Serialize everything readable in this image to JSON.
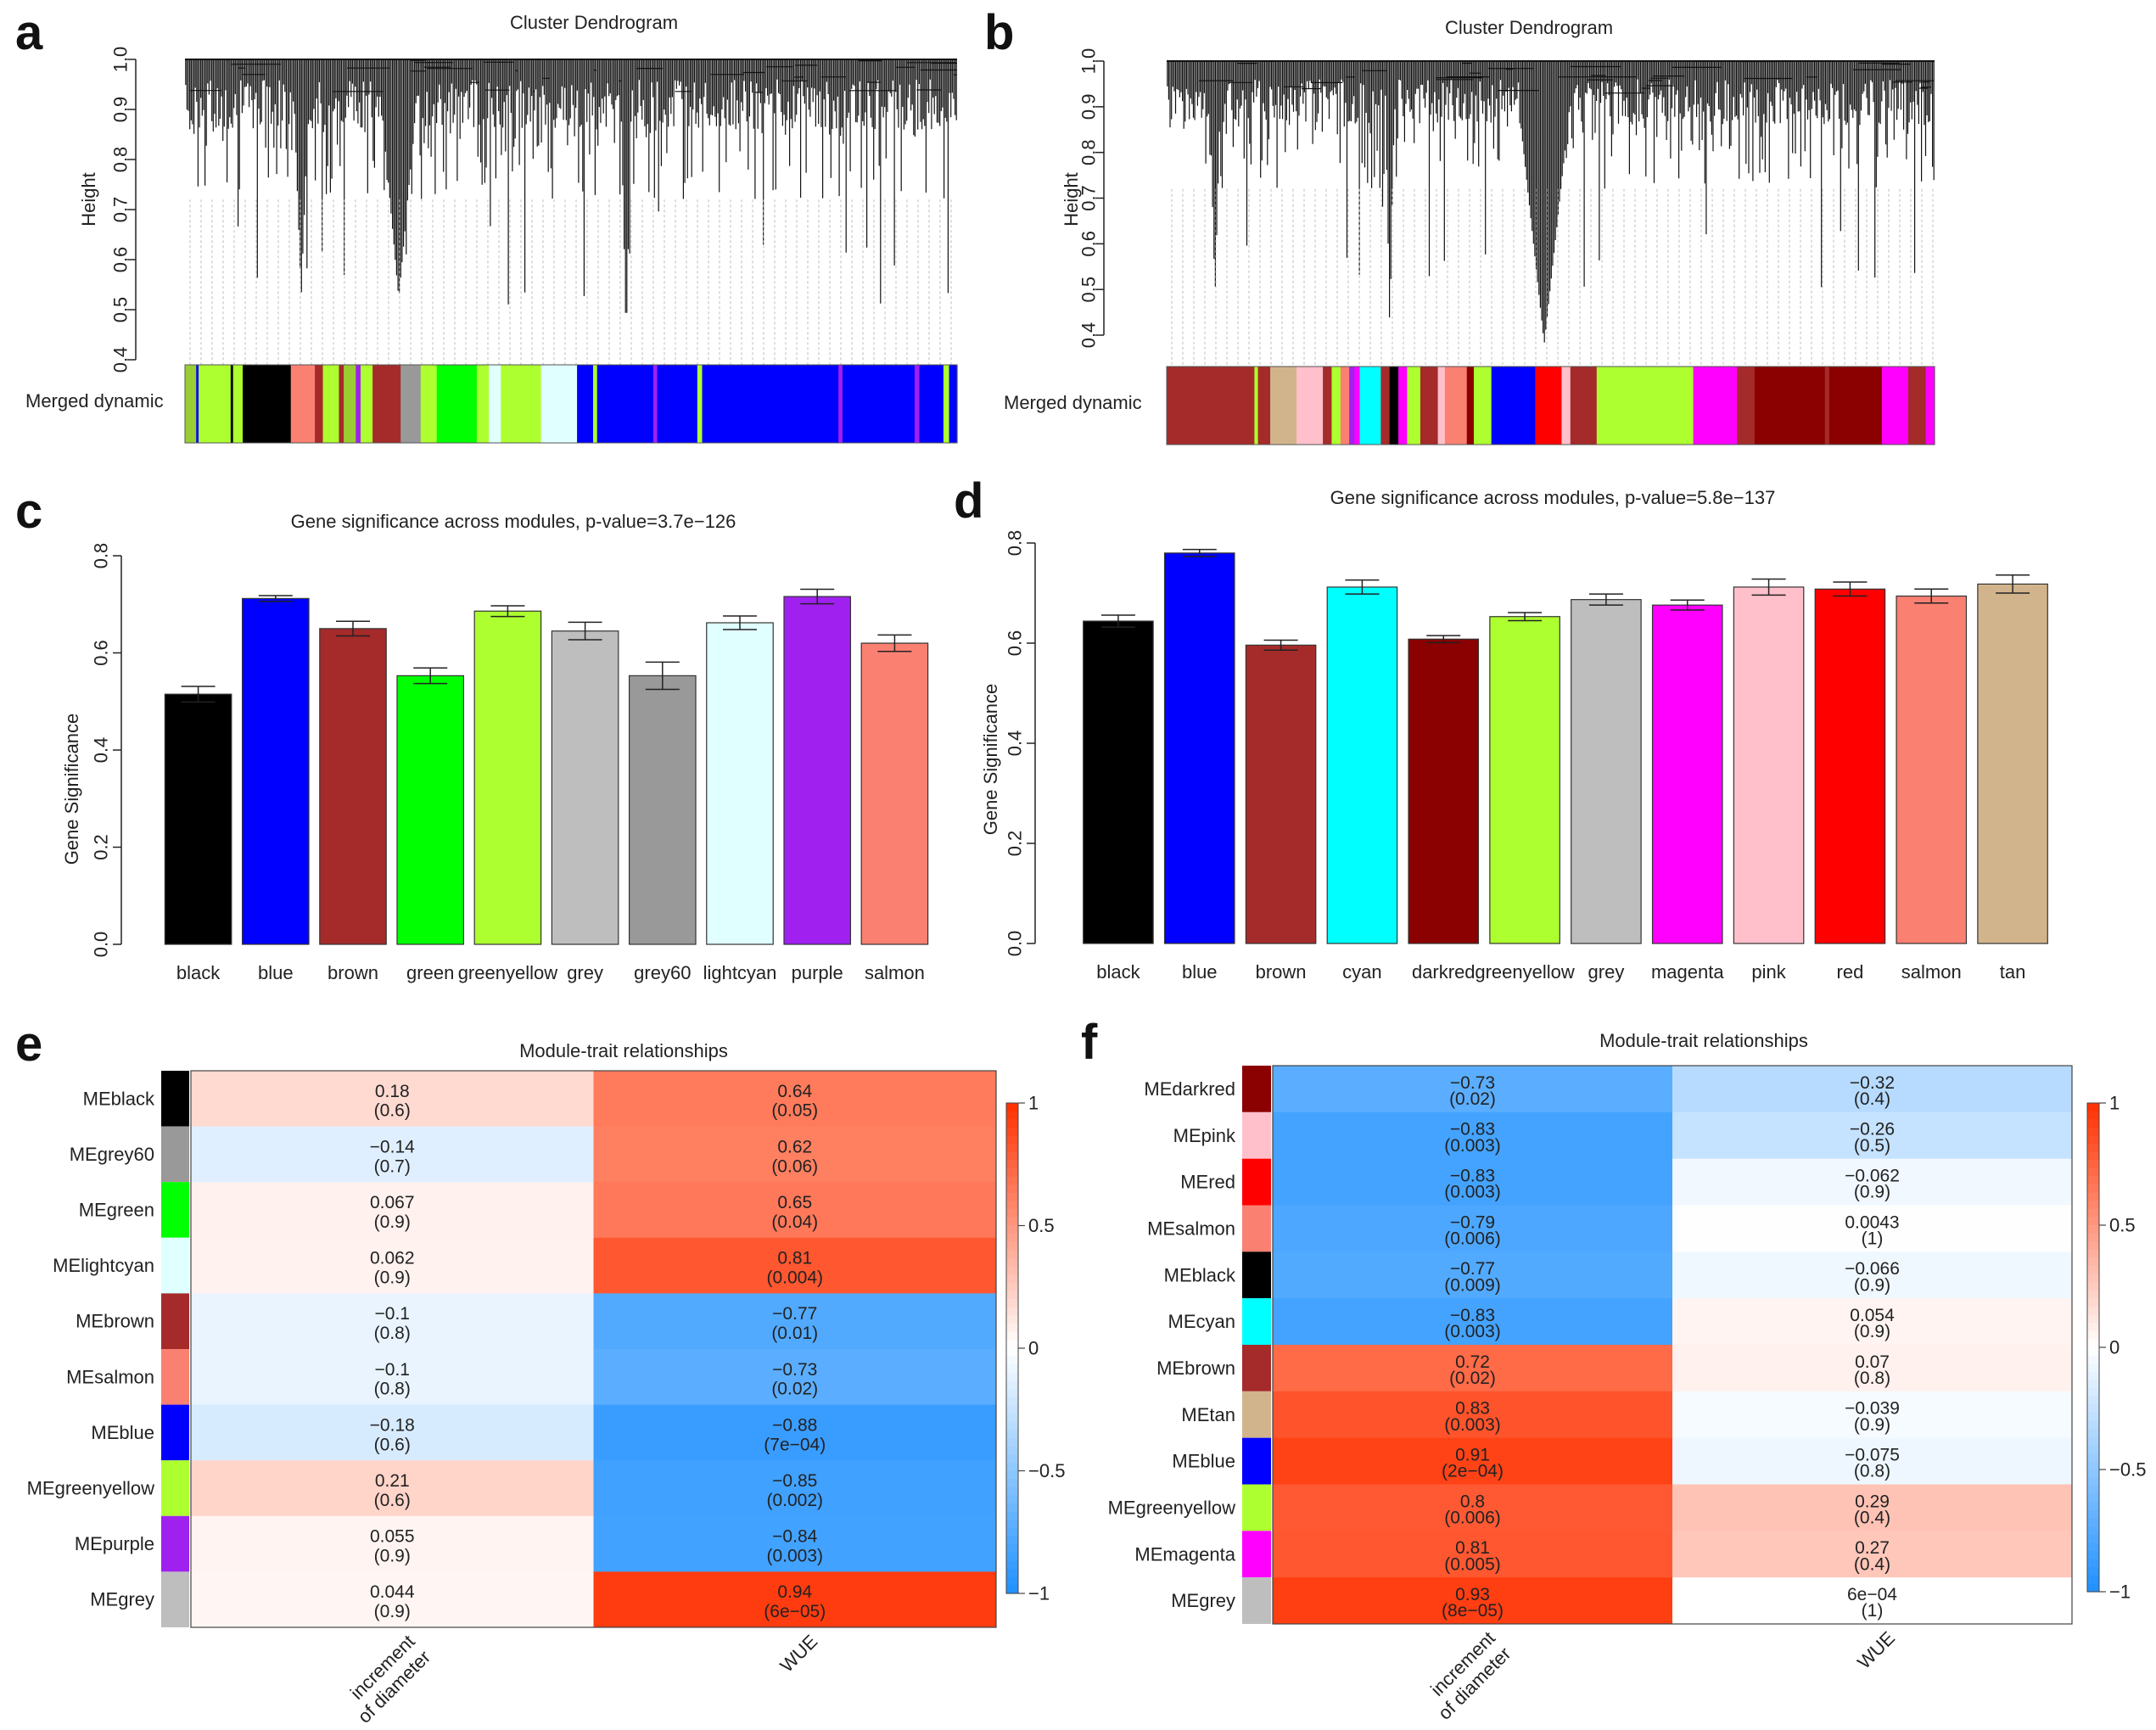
{
  "panels": {
    "a": {
      "label": "a",
      "title": "Cluster Dendrogram",
      "ylabel": "Height",
      "yticks": [
        "0.4",
        "0.5",
        "0.6",
        "0.7",
        "0.8",
        "0.9",
        "1.0"
      ],
      "color_bar_label": "Merged dynamic",
      "color_bar": [
        {
          "c": "#9acd32",
          "w": 1.4
        },
        {
          "c": "#0000ff",
          "w": 0.3
        },
        {
          "c": "#adff2f",
          "w": 4
        },
        {
          "c": "#000000",
          "w": 0.3
        },
        {
          "c": "#adff2f",
          "w": 1.2
        },
        {
          "c": "#000000",
          "w": 6
        },
        {
          "c": "#fa8072",
          "w": 3
        },
        {
          "c": "#a52a2a",
          "w": 1
        },
        {
          "c": "#adff2f",
          "w": 2
        },
        {
          "c": "#a52a2a",
          "w": 0.6
        },
        {
          "c": "#9acd32",
          "w": 1.5
        },
        {
          "c": "#a020f0",
          "w": 0.6
        },
        {
          "c": "#adff2f",
          "w": 1.5
        },
        {
          "c": "#a52a2a",
          "w": 3.5
        },
        {
          "c": "#999999",
          "w": 2.5
        },
        {
          "c": "#adff2f",
          "w": 2
        },
        {
          "c": "#00ff00",
          "w": 5
        },
        {
          "c": "#adff2f",
          "w": 1.5
        },
        {
          "c": "#e0ffff",
          "w": 1.5
        },
        {
          "c": "#adff2f",
          "w": 5
        },
        {
          "c": "#e0ffff",
          "w": 4.5
        },
        {
          "c": "#0000ff",
          "w": 2
        },
        {
          "c": "#adff2f",
          "w": 0.5
        },
        {
          "c": "#0000ff",
          "w": 7
        },
        {
          "c": "#a020f0",
          "w": 0.5
        },
        {
          "c": "#0000ff",
          "w": 5
        },
        {
          "c": "#adff2f",
          "w": 0.6
        },
        {
          "c": "#0000ff",
          "w": 17
        },
        {
          "c": "#a020f0",
          "w": 0.5
        },
        {
          "c": "#0000ff",
          "w": 9
        },
        {
          "c": "#a020f0",
          "w": 0.6
        },
        {
          "c": "#0000ff",
          "w": 3
        },
        {
          "c": "#adff2f",
          "w": 0.7
        },
        {
          "c": "#0000ff",
          "w": 1
        }
      ]
    },
    "b": {
      "label": "b",
      "title": "Cluster Dendrogram",
      "ylabel": "Height",
      "yticks": [
        "0.4",
        "0.5",
        "0.6",
        "0.7",
        "0.8",
        "0.9",
        "1.0"
      ],
      "color_bar_label": "Merged dynamic",
      "color_bar": [
        {
          "c": "#a52a2a",
          "w": 10
        },
        {
          "c": "#adff2f",
          "w": 0.4
        },
        {
          "c": "#a52a2a",
          "w": 1.4
        },
        {
          "c": "#d2b48c",
          "w": 3
        },
        {
          "c": "#ffc0cb",
          "w": 3
        },
        {
          "c": "#a52a2a",
          "w": 1
        },
        {
          "c": "#adff2f",
          "w": 1
        },
        {
          "c": "#fa8072",
          "w": 1
        },
        {
          "c": "#a020f0",
          "w": 0.6
        },
        {
          "c": "#ff00ff",
          "w": 0.6
        },
        {
          "c": "#00ffff",
          "w": 2.4
        },
        {
          "c": "#a52a2a",
          "w": 1
        },
        {
          "c": "#000000",
          "w": 1
        },
        {
          "c": "#ff00ff",
          "w": 1
        },
        {
          "c": "#adff2f",
          "w": 1.5
        },
        {
          "c": "#a52a2a",
          "w": 2
        },
        {
          "c": "#ffc0cb",
          "w": 0.8
        },
        {
          "c": "#fa8072",
          "w": 2.5
        },
        {
          "c": "#8b0000",
          "w": 0.8
        },
        {
          "c": "#adff2f",
          "w": 2
        },
        {
          "c": "#0000ff",
          "w": 5
        },
        {
          "c": "#ff0000",
          "w": 3
        },
        {
          "c": "#ffc0cb",
          "w": 1
        },
        {
          "c": "#a52a2a",
          "w": 3
        },
        {
          "c": "#adff2f",
          "w": 11
        },
        {
          "c": "#ff00ff",
          "w": 5
        },
        {
          "c": "#a52a2a",
          "w": 2
        },
        {
          "c": "#8b0000",
          "w": 8
        },
        {
          "c": "#a52a2a",
          "w": 0.5
        },
        {
          "c": "#8b0000",
          "w": 6
        },
        {
          "c": "#ff00ff",
          "w": 3
        },
        {
          "c": "#a52a2a",
          "w": 2
        },
        {
          "c": "#ff00ff",
          "w": 1
        }
      ]
    },
    "c": {
      "label": "c",
      "title": "Gene significance across modules, p-value=3.7e−126",
      "ylabel": "Gene Significance",
      "yticks": [
        "0.0",
        "0.2",
        "0.4",
        "0.6",
        "0.8"
      ]
    },
    "d": {
      "label": "d",
      "title": "Gene significance across modules, p-value=5.8e−137",
      "ylabel": "Gene Significance",
      "yticks": [
        "0.0",
        "0.2",
        "0.4",
        "0.6",
        "0.8"
      ]
    },
    "e": {
      "label": "e",
      "title": "Module-trait relationships",
      "columns": [
        "increment\nof diameter",
        "WUE"
      ],
      "legend_ticks": [
        "1",
        "0.5",
        "0",
        "−0.5",
        "−1"
      ]
    },
    "f": {
      "label": "f",
      "title": "Module-trait relationships",
      "columns": [
        "increment\nof diameter",
        "WUE"
      ],
      "legend_ticks": [
        "1",
        "0.5",
        "0",
        "−0.5",
        "−1"
      ]
    }
  },
  "chart_data": [
    {
      "id": "c",
      "type": "bar",
      "title": "Gene significance across modules, p-value=3.7e−126",
      "ylabel": "Gene Significance",
      "ylim": [
        0,
        0.8
      ],
      "categories": [
        "black",
        "blue",
        "brown",
        "green",
        "greenyellow",
        "grey",
        "grey60",
        "lightcyan",
        "purple",
        "salmon"
      ],
      "values": [
        0.515,
        0.712,
        0.65,
        0.553,
        0.686,
        0.645,
        0.553,
        0.662,
        0.716,
        0.62
      ],
      "errors": [
        0.016,
        0.006,
        0.015,
        0.016,
        0.011,
        0.018,
        0.028,
        0.014,
        0.015,
        0.017
      ],
      "colors": [
        "#000000",
        "#0000ff",
        "#a52a2a",
        "#00ff00",
        "#adff2f",
        "#bebebe",
        "#999999",
        "#e0ffff",
        "#a020f0",
        "#fa8072"
      ]
    },
    {
      "id": "d",
      "type": "bar",
      "title": "Gene significance across modules, p-value=5.8e−137",
      "ylabel": "Gene Significance",
      "ylim": [
        0,
        0.8
      ],
      "categories": [
        "black",
        "blue",
        "brown",
        "cyan",
        "darkred",
        "greenyellow",
        "grey",
        "magenta",
        "pink",
        "red",
        "salmon",
        "tan"
      ],
      "values": [
        0.644,
        0.78,
        0.596,
        0.712,
        0.608,
        0.653,
        0.687,
        0.676,
        0.712,
        0.708,
        0.694,
        0.718
      ],
      "errors": [
        0.012,
        0.007,
        0.01,
        0.014,
        0.007,
        0.008,
        0.011,
        0.01,
        0.016,
        0.014,
        0.014,
        0.018
      ],
      "colors": [
        "#000000",
        "#0000ff",
        "#a52a2a",
        "#00ffff",
        "#8b0000",
        "#adff2f",
        "#bebebe",
        "#ff00ff",
        "#ffc0cb",
        "#ff0000",
        "#fa8072",
        "#d2b48c"
      ]
    },
    {
      "id": "e",
      "type": "heatmap",
      "title": "Module-trait relationships",
      "rows": [
        "MEblack",
        "MEgrey60",
        "MEgreen",
        "MElightcyan",
        "MEbrown",
        "MEsalmon",
        "MEblue",
        "MEgreenyellow",
        "MEpurple",
        "MEgrey"
      ],
      "row_colors": [
        "#000000",
        "#999999",
        "#00ff00",
        "#e0ffff",
        "#a52a2a",
        "#fa8072",
        "#0000ff",
        "#adff2f",
        "#a020f0",
        "#bebebe"
      ],
      "columns": [
        "increment of diameter",
        "WUE"
      ],
      "values": [
        [
          0.18,
          0.64
        ],
        [
          -0.14,
          0.62
        ],
        [
          0.067,
          0.65
        ],
        [
          0.062,
          0.81
        ],
        [
          -0.1,
          -0.77
        ],
        [
          -0.1,
          -0.73
        ],
        [
          -0.18,
          -0.88
        ],
        [
          0.21,
          -0.85
        ],
        [
          0.055,
          -0.84
        ],
        [
          0.044,
          0.94
        ]
      ],
      "labels": [
        [
          "0.18",
          "0.64"
        ],
        [
          "−0.14",
          "0.62"
        ],
        [
          "0.067",
          "0.65"
        ],
        [
          "0.062",
          "0.81"
        ],
        [
          "−0.1",
          "−0.77"
        ],
        [
          "−0.1",
          "−0.73"
        ],
        [
          "−0.18",
          "−0.88"
        ],
        [
          "0.21",
          "−0.85"
        ],
        [
          "0.055",
          "−0.84"
        ],
        [
          "0.044",
          "0.94"
        ]
      ],
      "pvalues": [
        [
          "(0.6)",
          "(0.05)"
        ],
        [
          "(0.7)",
          "(0.06)"
        ],
        [
          "(0.9)",
          "(0.04)"
        ],
        [
          "(0.9)",
          "(0.004)"
        ],
        [
          "(0.8)",
          "(0.01)"
        ],
        [
          "(0.8)",
          "(0.02)"
        ],
        [
          "(0.6)",
          "(7e−04)"
        ],
        [
          "(0.6)",
          "(0.002)"
        ],
        [
          "(0.9)",
          "(0.003)"
        ],
        [
          "(0.9)",
          "(6e−05)"
        ]
      ],
      "scale": [
        -1,
        1
      ]
    },
    {
      "id": "f",
      "type": "heatmap",
      "title": "Module-trait relationships",
      "rows": [
        "MEdarkred",
        "MEpink",
        "MEred",
        "MEsalmon",
        "MEblack",
        "MEcyan",
        "MEbrown",
        "MEtan",
        "MEblue",
        "MEgreenyellow",
        "MEmagenta",
        "MEgrey"
      ],
      "row_colors": [
        "#8b0000",
        "#ffc0cb",
        "#ff0000",
        "#fa8072",
        "#000000",
        "#00ffff",
        "#a52a2a",
        "#d2b48c",
        "#0000ff",
        "#adff2f",
        "#ff00ff",
        "#bebebe"
      ],
      "columns": [
        "increment of diameter",
        "WUE"
      ],
      "values": [
        [
          -0.73,
          -0.32
        ],
        [
          -0.83,
          -0.26
        ],
        [
          -0.83,
          -0.062
        ],
        [
          -0.79,
          0.0043
        ],
        [
          -0.77,
          -0.066
        ],
        [
          -0.83,
          0.054
        ],
        [
          0.72,
          0.07
        ],
        [
          0.83,
          -0.039
        ],
        [
          0.91,
          -0.075
        ],
        [
          0.8,
          0.29
        ],
        [
          0.81,
          0.27
        ],
        [
          0.93,
          0.0006
        ]
      ],
      "labels": [
        [
          "−0.73",
          "−0.32"
        ],
        [
          "−0.83",
          "−0.26"
        ],
        [
          "−0.83",
          "−0.062"
        ],
        [
          "−0.79",
          "0.0043"
        ],
        [
          "−0.77",
          "−0.066"
        ],
        [
          "−0.83",
          "0.054"
        ],
        [
          "0.72",
          "0.07"
        ],
        [
          "0.83",
          "−0.039"
        ],
        [
          "0.91",
          "−0.075"
        ],
        [
          "0.8",
          "0.29"
        ],
        [
          "0.81",
          "0.27"
        ],
        [
          "0.93",
          "6e−04"
        ]
      ],
      "pvalues": [
        [
          "(0.02)",
          "(0.4)"
        ],
        [
          "(0.003)",
          "(0.5)"
        ],
        [
          "(0.003)",
          "(0.9)"
        ],
        [
          "(0.006)",
          "(1)"
        ],
        [
          "(0.009)",
          "(0.9)"
        ],
        [
          "(0.003)",
          "(0.9)"
        ],
        [
          "(0.02)",
          "(0.8)"
        ],
        [
          "(0.003)",
          "(0.9)"
        ],
        [
          "(2e−04)",
          "(0.8)"
        ],
        [
          "(0.006)",
          "(0.4)"
        ],
        [
          "(0.005)",
          "(0.4)"
        ],
        [
          "(8e−05)",
          "(1)"
        ]
      ],
      "scale": [
        -1,
        1
      ]
    }
  ]
}
